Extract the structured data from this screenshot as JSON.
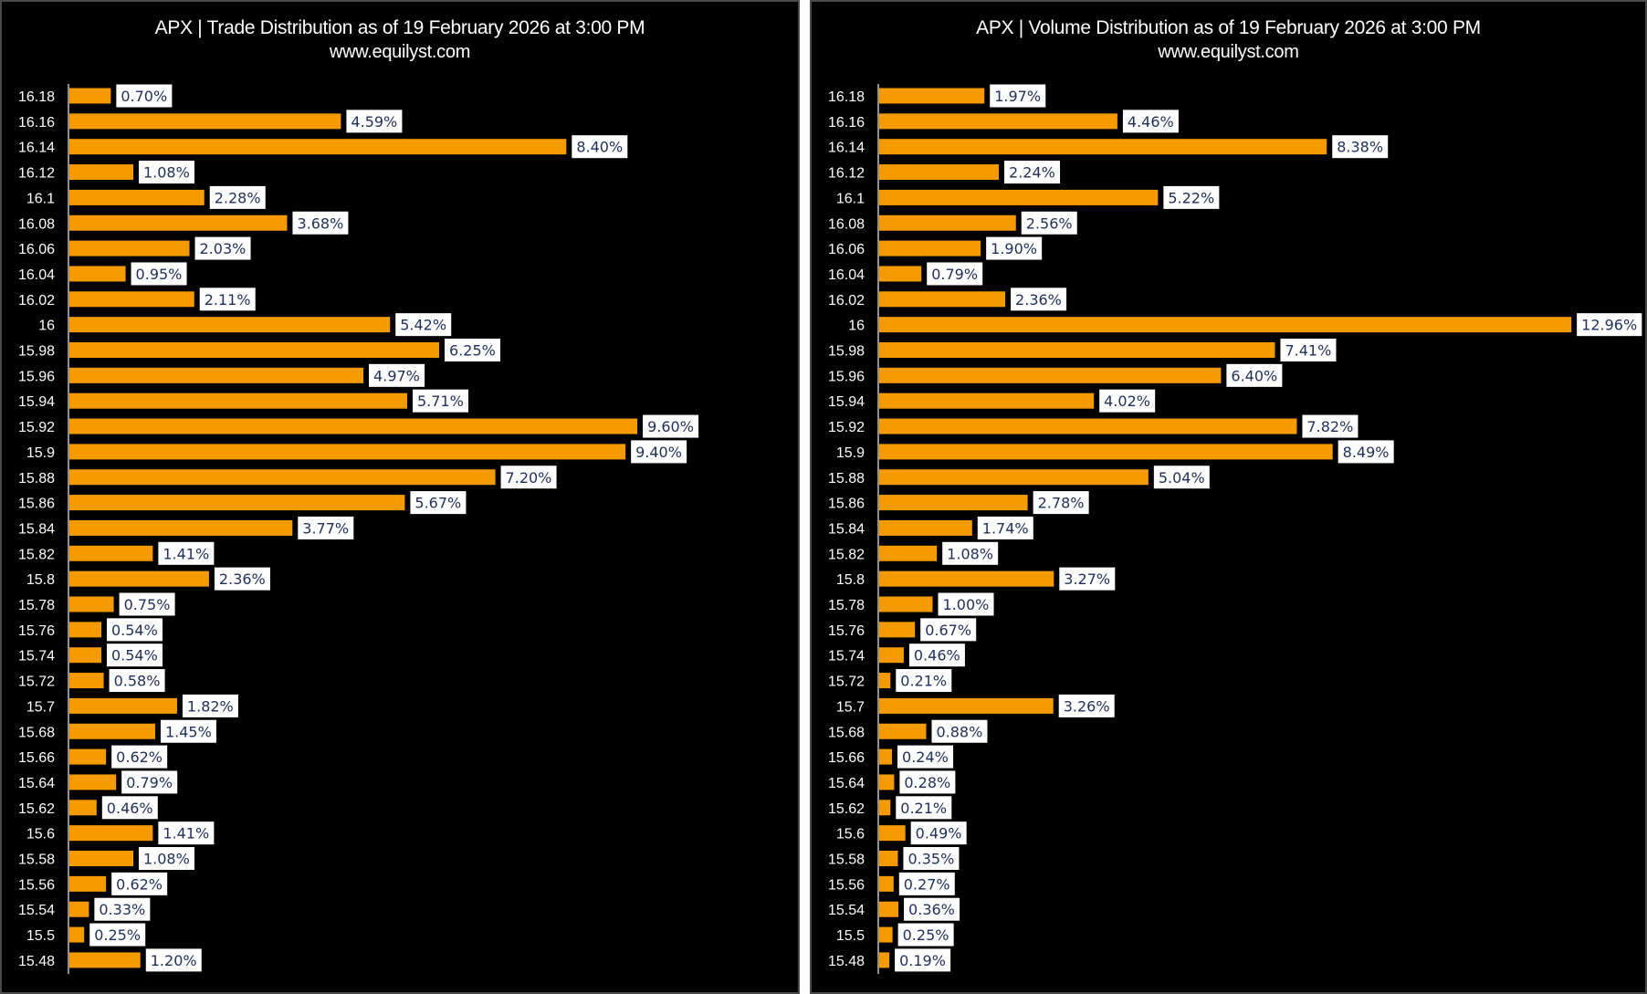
{
  "colors": {
    "background": "#000000",
    "bar": "#F59B00",
    "label_box": "#FFFFFF",
    "label_text": "#1F2F5C",
    "text": "#FFFFFF",
    "axis": "#BFBFBF"
  },
  "chart_data": [
    {
      "type": "bar",
      "orientation": "horizontal",
      "title": "APX | Trade Distribution as of 19 February 2026 at 3:00 PM",
      "subtitle": "www.equilyst.com",
      "xlabel": "",
      "ylabel": "",
      "grid": false,
      "categories": [
        "16.18",
        "16.16",
        "16.14",
        "16.12",
        "16.1",
        "16.08",
        "16.06",
        "16.04",
        "16.02",
        "16",
        "15.98",
        "15.96",
        "15.94",
        "15.92",
        "15.9",
        "15.88",
        "15.86",
        "15.84",
        "15.82",
        "15.8",
        "15.78",
        "15.76",
        "15.74",
        "15.72",
        "15.7",
        "15.68",
        "15.66",
        "15.64",
        "15.62",
        "15.6",
        "15.58",
        "15.56",
        "15.54",
        "15.5",
        "15.48"
      ],
      "values": [
        0.7,
        4.59,
        8.4,
        1.08,
        2.28,
        3.68,
        2.03,
        0.95,
        2.11,
        5.42,
        6.25,
        4.97,
        5.71,
        9.6,
        9.4,
        7.2,
        5.67,
        3.77,
        1.41,
        2.36,
        0.75,
        0.54,
        0.54,
        0.58,
        1.82,
        1.45,
        0.62,
        0.79,
        0.46,
        1.41,
        1.08,
        0.62,
        0.33,
        0.25,
        1.2
      ],
      "value_labels": [
        "0.70%",
        "4.59%",
        "8.40%",
        "1.08%",
        "2.28%",
        "3.68%",
        "2.03%",
        "0.95%",
        "2.11%",
        "5.42%",
        "6.25%",
        "4.97%",
        "5.71%",
        "9.60%",
        "9.40%",
        "7.20%",
        "5.67%",
        "3.77%",
        "1.41%",
        "2.36%",
        "0.75%",
        "0.54%",
        "0.54%",
        "0.58%",
        "1.82%",
        "1.45%",
        "0.62%",
        "0.79%",
        "0.46%",
        "1.41%",
        "1.08%",
        "0.62%",
        "0.33%",
        "0.25%",
        "1.20%"
      ],
      "unit": "%"
    },
    {
      "type": "bar",
      "orientation": "horizontal",
      "title": "APX | Volume Distribution as of 19 February 2026 at 3:00 PM",
      "subtitle": "www.equilyst.com",
      "xlabel": "",
      "ylabel": "",
      "grid": false,
      "categories": [
        "16.18",
        "16.16",
        "16.14",
        "16.12",
        "16.1",
        "16.08",
        "16.06",
        "16.04",
        "16.02",
        "16",
        "15.98",
        "15.96",
        "15.94",
        "15.92",
        "15.9",
        "15.88",
        "15.86",
        "15.84",
        "15.82",
        "15.8",
        "15.78",
        "15.76",
        "15.74",
        "15.72",
        "15.7",
        "15.68",
        "15.66",
        "15.64",
        "15.62",
        "15.6",
        "15.58",
        "15.56",
        "15.54",
        "15.5",
        "15.48"
      ],
      "values": [
        1.97,
        4.46,
        8.38,
        2.24,
        5.22,
        2.56,
        1.9,
        0.79,
        2.36,
        12.96,
        7.41,
        6.4,
        4.02,
        7.82,
        8.49,
        5.04,
        2.78,
        1.74,
        1.08,
        3.27,
        1.0,
        0.67,
        0.46,
        0.21,
        3.26,
        0.88,
        0.24,
        0.28,
        0.21,
        0.49,
        0.35,
        0.27,
        0.36,
        0.25,
        0.19
      ],
      "value_labels": [
        "1.97%",
        "4.46%",
        "8.38%",
        "2.24%",
        "5.22%",
        "2.56%",
        "1.90%",
        "0.79%",
        "2.36%",
        "12.96%",
        "7.41%",
        "6.40%",
        "4.02%",
        "7.82%",
        "8.49%",
        "5.04%",
        "2.78%",
        "1.74%",
        "1.08%",
        "3.27%",
        "1.00%",
        "0.67%",
        "0.46%",
        "0.21%",
        "3.26%",
        "0.88%",
        "0.24%",
        "0.28%",
        "0.21%",
        "0.49%",
        "0.35%",
        "0.27%",
        "0.36%",
        "0.25%",
        "0.19%"
      ],
      "unit": "%"
    }
  ]
}
